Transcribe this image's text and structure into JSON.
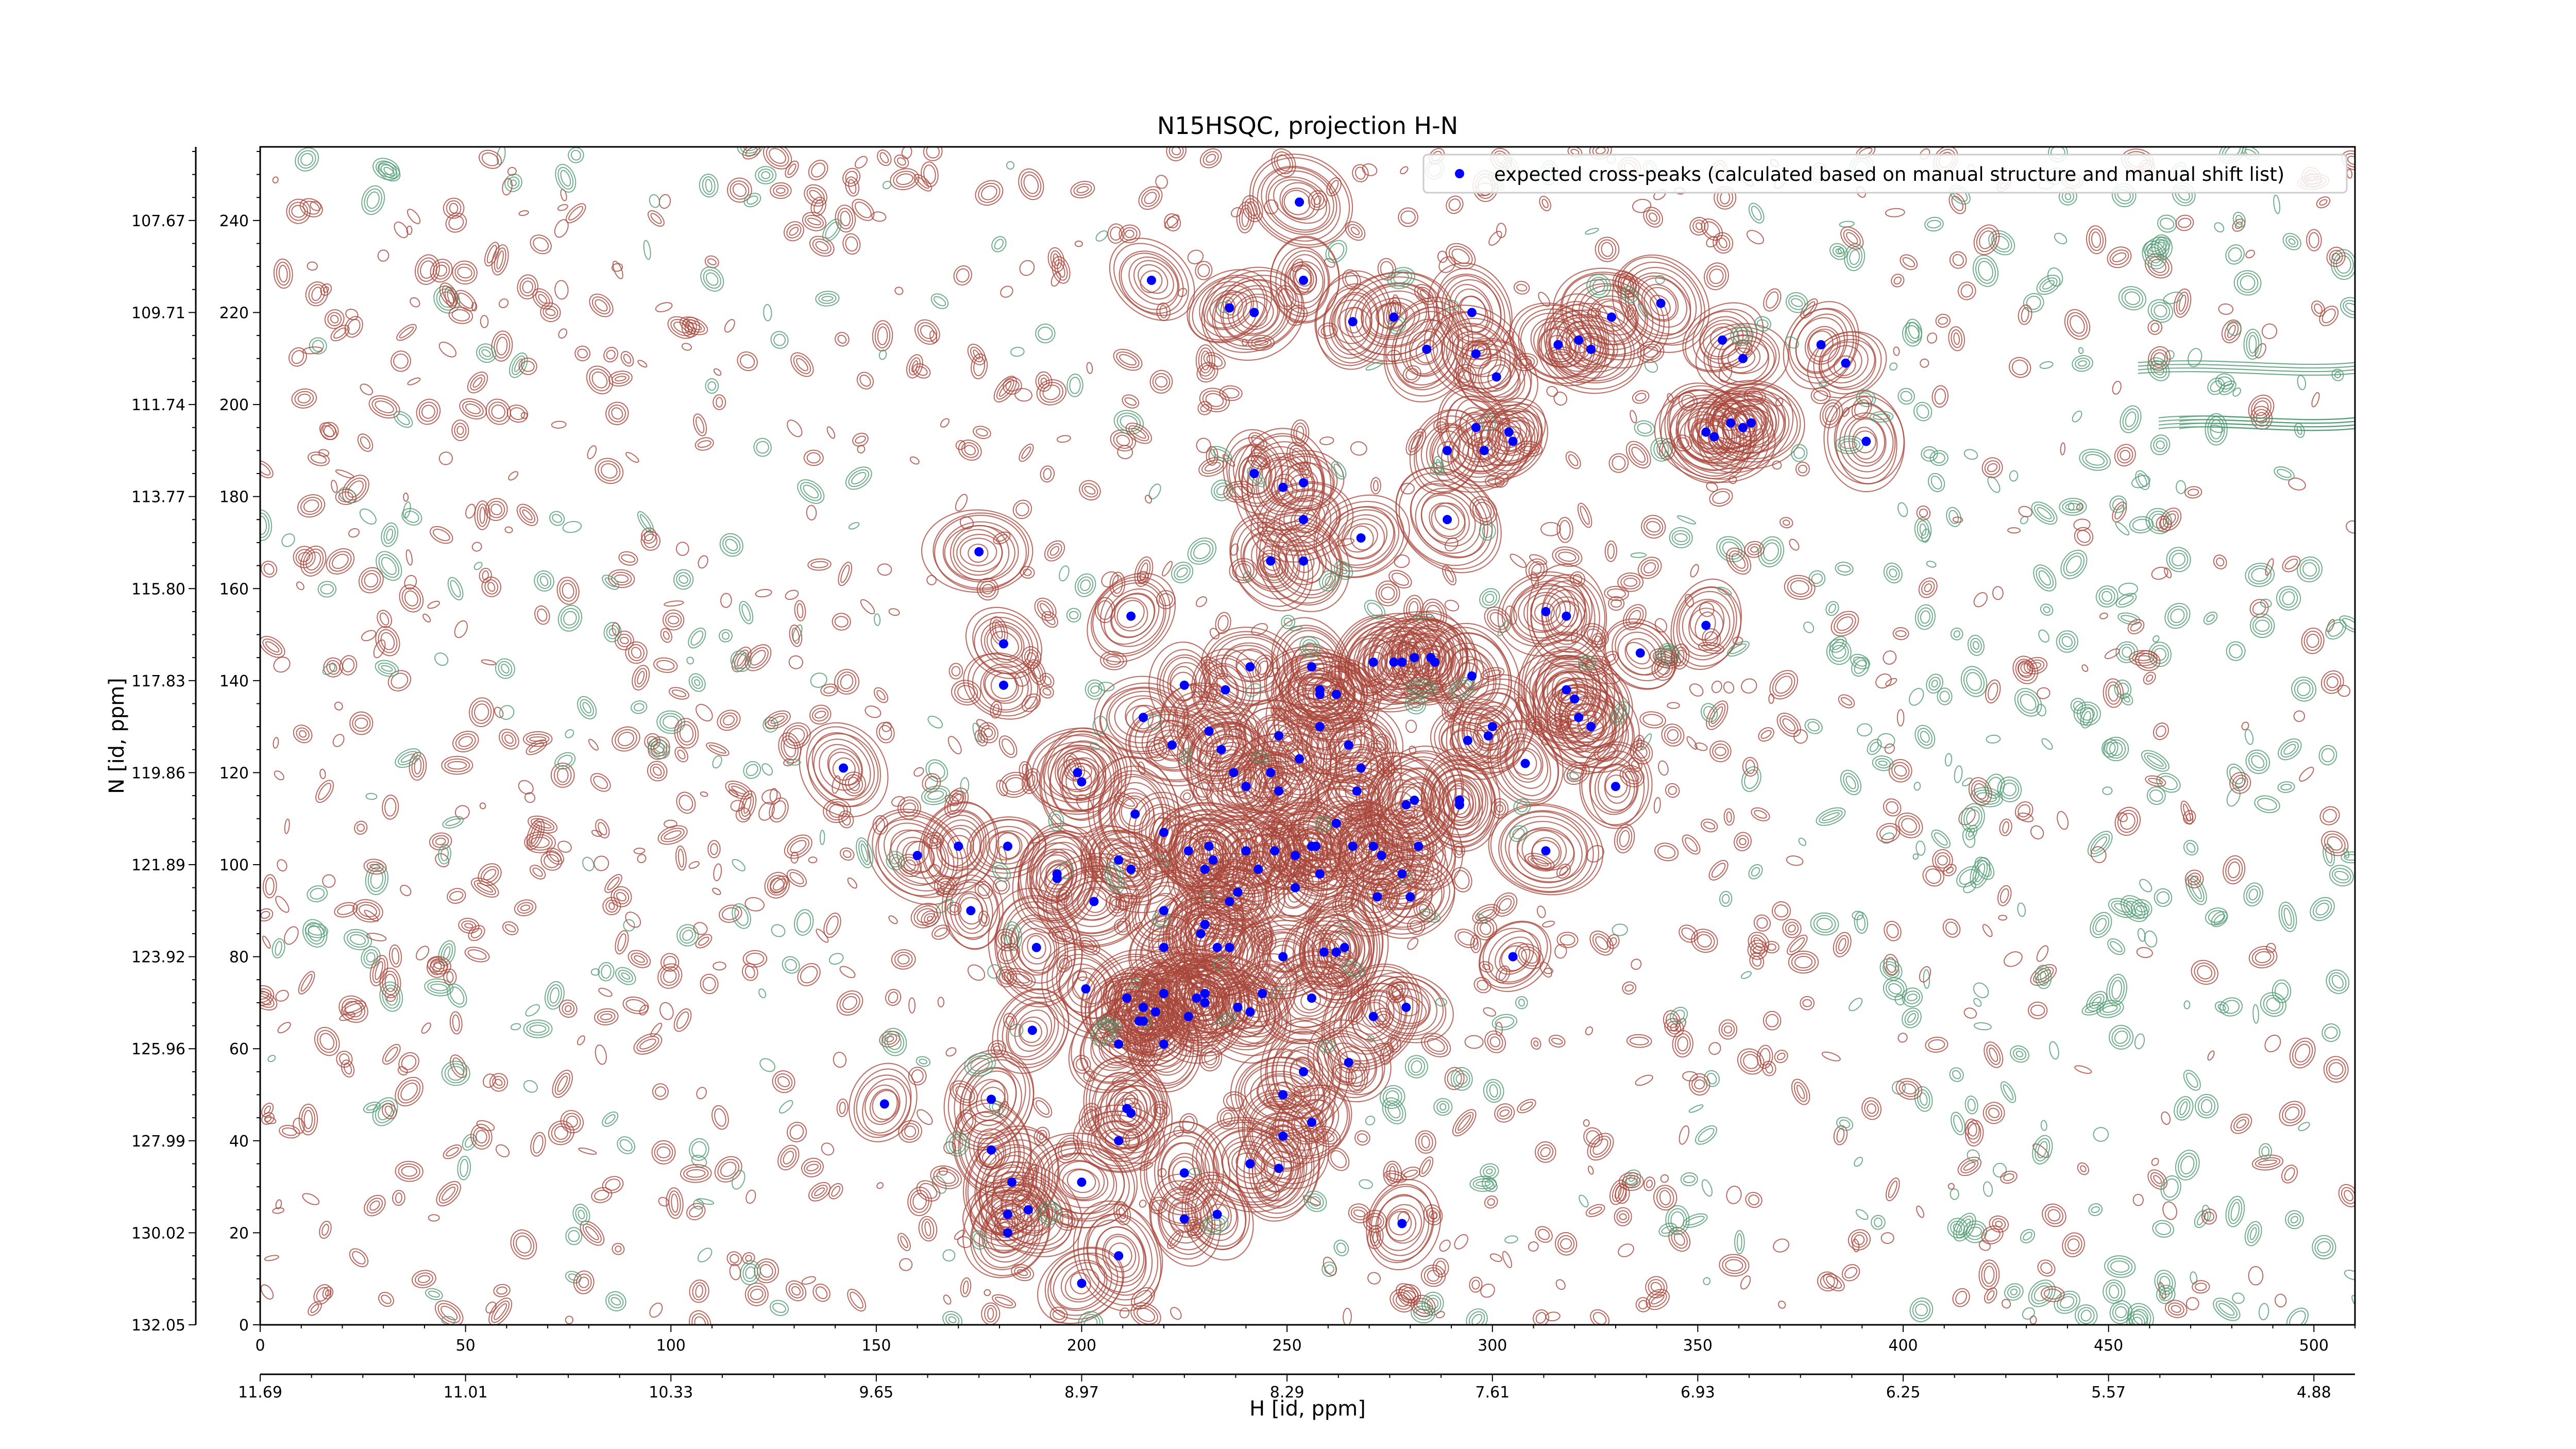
{
  "chart_data": {
    "type": "scatter",
    "title": "N15HSQC, projection H-N",
    "xlabel": "H [id, ppm]",
    "ylabel": "N [id, ppm]",
    "xlim": [
      0,
      510
    ],
    "ylim": [
      0,
      256
    ],
    "x_index_ticks": [
      "0",
      "50",
      "100",
      "150",
      "200",
      "250",
      "300",
      "350",
      "400",
      "450",
      "500"
    ],
    "x_ppm_ticks": [
      "11.69",
      "11.01",
      "10.33",
      "9.65",
      "8.97",
      "8.29",
      "7.61",
      "6.93",
      "6.25",
      "5.57",
      "4.88"
    ],
    "y_index_ticks": [
      "0",
      "20",
      "40",
      "60",
      "80",
      "100",
      "120",
      "140",
      "160",
      "180",
      "200",
      "220",
      "240"
    ],
    "y_ppm_ticks": [
      "132.05",
      "130.02",
      "127.99",
      "125.96",
      "123.92",
      "121.89",
      "119.86",
      "117.83",
      "115.80",
      "113.77",
      "111.74",
      "109.71",
      "107.67"
    ],
    "legend": {
      "label": "expected cross-peaks (calculated based on manual structure and manual shift list)",
      "position": "top-right"
    },
    "colors": {
      "positive_contour": "#a8453a",
      "negative_contour": "#4f9a72",
      "peak_marker": "#0000ff"
    },
    "series": [
      {
        "name": "expected cross-peaks (calculated based on manual structure and manual shift list)",
        "points": [
          [
            253,
            244
          ],
          [
            217,
            227
          ],
          [
            254,
            227
          ],
          [
            236,
            221
          ],
          [
            242,
            220
          ],
          [
            266,
            218
          ],
          [
            276,
            219
          ],
          [
            284,
            212
          ],
          [
            295,
            220
          ],
          [
            296,
            211
          ],
          [
            301,
            206
          ],
          [
            316,
            213
          ],
          [
            321,
            214
          ],
          [
            324,
            212
          ],
          [
            329,
            219
          ],
          [
            341,
            222
          ],
          [
            356,
            214
          ],
          [
            361,
            210
          ],
          [
            380,
            213
          ],
          [
            386,
            209
          ],
          [
            391,
            192
          ],
          [
            296,
            195
          ],
          [
            298,
            190
          ],
          [
            304,
            194
          ],
          [
            305,
            192
          ],
          [
            354,
            193
          ],
          [
            352,
            194
          ],
          [
            358,
            196
          ],
          [
            361,
            195
          ],
          [
            363,
            196
          ],
          [
            242,
            185
          ],
          [
            249,
            182
          ],
          [
            254,
            183
          ],
          [
            254,
            175
          ],
          [
            246,
            166
          ],
          [
            254,
            166
          ],
          [
            268,
            171
          ],
          [
            289,
            190
          ],
          [
            289,
            175
          ],
          [
            175,
            168
          ],
          [
            181,
            148
          ],
          [
            181,
            139
          ],
          [
            142,
            121
          ],
          [
            212,
            154
          ],
          [
            241,
            143
          ],
          [
            235,
            138
          ],
          [
            225,
            139
          ],
          [
            231,
            129
          ],
          [
            234,
            125
          ],
          [
            240,
            117
          ],
          [
            237,
            120
          ],
          [
            246,
            120
          ],
          [
            248,
            116
          ],
          [
            253,
            123
          ],
          [
            248,
            128
          ],
          [
            258,
            138
          ],
          [
            258,
            137
          ],
          [
            258,
            130
          ],
          [
            256,
            143
          ],
          [
            262,
            137
          ],
          [
            265,
            126
          ],
          [
            268,
            121
          ],
          [
            267,
            116
          ],
          [
            262,
            109
          ],
          [
            256,
            104
          ],
          [
            252,
            102
          ],
          [
            257,
            104
          ],
          [
            258,
            98
          ],
          [
            266,
            104
          ],
          [
            271,
            104
          ],
          [
            273,
            102
          ],
          [
            282,
            104
          ],
          [
            279,
            113
          ],
          [
            281,
            114
          ],
          [
            292,
            114
          ],
          [
            294,
            127
          ],
          [
            295,
            141
          ],
          [
            286,
            144
          ],
          [
            285,
            145
          ],
          [
            281,
            145
          ],
          [
            278,
            144
          ],
          [
            276,
            144
          ],
          [
            271,
            144
          ],
          [
            320,
            136
          ],
          [
            318,
            138
          ],
          [
            321,
            132
          ],
          [
            324,
            130
          ],
          [
            308,
            122
          ],
          [
            299,
            128
          ],
          [
            300,
            130
          ],
          [
            313,
            155
          ],
          [
            318,
            154
          ],
          [
            336,
            146
          ],
          [
            352,
            152
          ],
          [
            330,
            117
          ],
          [
            313,
            103
          ],
          [
            292,
            113
          ],
          [
            272,
            93
          ],
          [
            280,
            93
          ],
          [
            278,
            98
          ],
          [
            199,
            120
          ],
          [
            200,
            118
          ],
          [
            215,
            132
          ],
          [
            222,
            126
          ],
          [
            213,
            111
          ],
          [
            226,
            103
          ],
          [
            230,
            99
          ],
          [
            232,
            101
          ],
          [
            231,
            104
          ],
          [
            240,
            103
          ],
          [
            243,
            99
          ],
          [
            247,
            103
          ],
          [
            220,
            107
          ],
          [
            209,
            101
          ],
          [
            212,
            99
          ],
          [
            194,
            98
          ],
          [
            194,
            97
          ],
          [
            182,
            104
          ],
          [
            170,
            104
          ],
          [
            160,
            102
          ],
          [
            173,
            90
          ],
          [
            189,
            82
          ],
          [
            203,
            92
          ],
          [
            220,
            90
          ],
          [
            220,
            82
          ],
          [
            233,
            82
          ],
          [
            236,
            82
          ],
          [
            236,
            92
          ],
          [
            230,
            87
          ],
          [
            229,
            85
          ],
          [
            238,
            94
          ],
          [
            252,
            95
          ],
          [
            259,
            81
          ],
          [
            262,
            81
          ],
          [
            264,
            82
          ],
          [
            249,
            80
          ],
          [
            244,
            72
          ],
          [
            230,
            72
          ],
          [
            230,
            70
          ],
          [
            228,
            71
          ],
          [
            220,
            72
          ],
          [
            211,
            71
          ],
          [
            215,
            69
          ],
          [
            218,
            68
          ],
          [
            214,
            66
          ],
          [
            220,
            61
          ],
          [
            226,
            67
          ],
          [
            238,
            69
          ],
          [
            241,
            68
          ],
          [
            256,
            71
          ],
          [
            254,
            55
          ],
          [
            256,
            44
          ],
          [
            249,
            50
          ],
          [
            249,
            41
          ],
          [
            265,
            57
          ],
          [
            271,
            67
          ],
          [
            279,
            69
          ],
          [
            305,
            80
          ],
          [
            178,
            49
          ],
          [
            178,
            38
          ],
          [
            188,
            64
          ],
          [
            201,
            73
          ],
          [
            209,
            61
          ],
          [
            215,
            66
          ],
          [
            211,
            47
          ],
          [
            212,
            46
          ],
          [
            209,
            40
          ],
          [
            225,
            33
          ],
          [
            241,
            35
          ],
          [
            248,
            34
          ],
          [
            225,
            23
          ],
          [
            200,
            31
          ],
          [
            209,
            15
          ],
          [
            200,
            9
          ],
          [
            182,
            20
          ],
          [
            187,
            25
          ],
          [
            182,
            24
          ],
          [
            152,
            48
          ],
          [
            183,
            31
          ],
          [
            233,
            24
          ],
          [
            278,
            22
          ]
        ]
      }
    ]
  }
}
